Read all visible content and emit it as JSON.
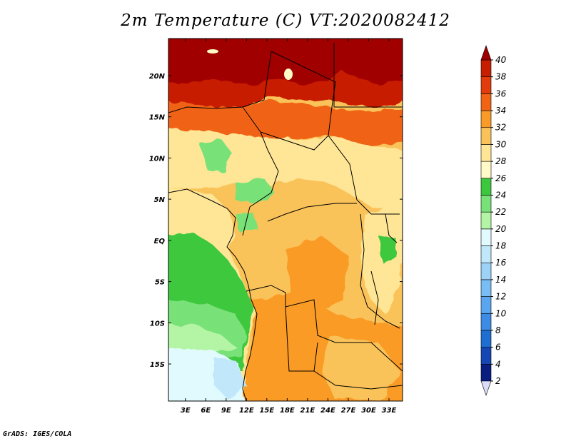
{
  "title": "2m Temperature (C) VT:2020082412",
  "credit": "GrADS: IGES/COLA",
  "map": {
    "lat_labels": [
      "20N",
      "15N",
      "10N",
      "5N",
      "EQ",
      "5S",
      "10S",
      "15S"
    ],
    "lat_values": [
      20,
      15,
      10,
      5,
      0,
      -5,
      -10,
      -15
    ],
    "lon_labels": [
      "3E",
      "6E",
      "9E",
      "12E",
      "15E",
      "18E",
      "21E",
      "24E",
      "27E",
      "30E",
      "33E"
    ],
    "lon_values": [
      3,
      6,
      9,
      12,
      15,
      18,
      21,
      24,
      27,
      30,
      33
    ],
    "lat_range": [
      -19.5,
      24.5
    ],
    "lon_range": [
      0.5,
      35
    ]
  },
  "colorbar": {
    "levels": [
      "2",
      "4",
      "6",
      "8",
      "10",
      "12",
      "14",
      "16",
      "18",
      "20",
      "22",
      "24",
      "26",
      "28",
      "30",
      "32",
      "34",
      "36",
      "38",
      "40"
    ],
    "colors": [
      "#0a1d80",
      "#1446b4",
      "#1e6ed2",
      "#3c8ce6",
      "#5aa5f0",
      "#78bef5",
      "#9bd2f5",
      "#c0e8fa",
      "#e1fafe",
      "#b4f5a5",
      "#78e178",
      "#3cc83c",
      "#fffac8",
      "#ffe696",
      "#fac35a",
      "#fa9b28",
      "#f06414",
      "#e13c0a",
      "#c81e00",
      "#a00000"
    ],
    "under_color": "#dcdcf8",
    "over_color": "#a00000"
  },
  "colors": {
    "ocean_cool": "#e1fafe",
    "ocean_warm": "#78e178",
    "land_hot": "#c81e00",
    "land_mid": "#fac35a",
    "land_warm": "#ffe696"
  }
}
